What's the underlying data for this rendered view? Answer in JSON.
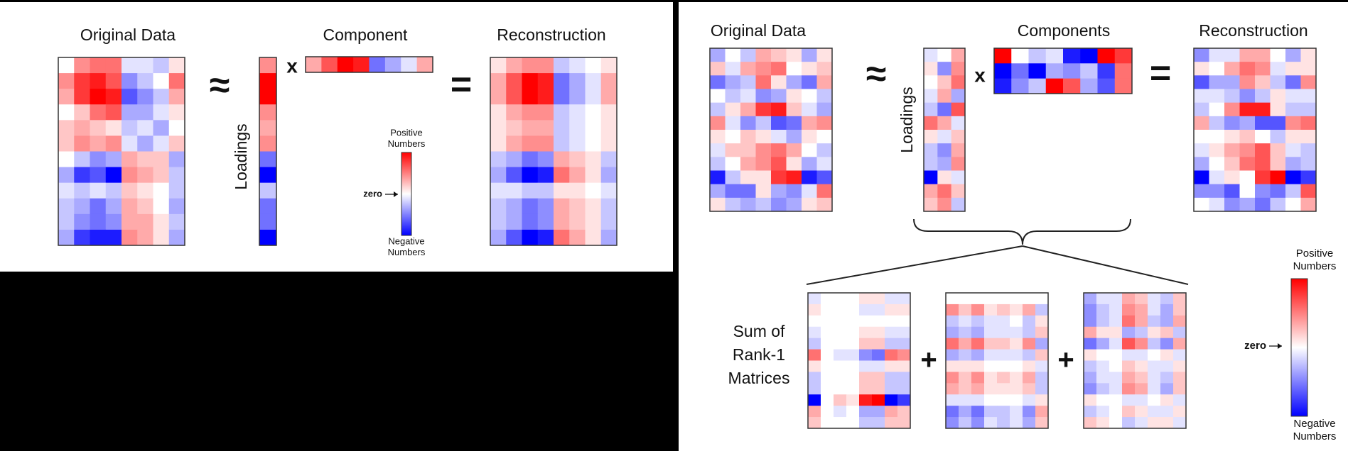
{
  "left": {
    "original": {
      "title": "Original Data",
      "matrix": [
        [
          0,
          4,
          5,
          5,
          -1,
          -1,
          -2,
          1
        ],
        [
          4,
          7,
          8,
          6,
          -4,
          -2,
          0,
          5
        ],
        [
          3,
          7,
          9,
          8,
          -6,
          -4,
          -2,
          3
        ],
        [
          0,
          2,
          5,
          6,
          -3,
          -3,
          -1,
          1
        ],
        [
          2,
          3,
          2,
          1,
          -2,
          -1,
          -3,
          0
        ],
        [
          2,
          4,
          3,
          4,
          -1,
          -3,
          -1,
          2
        ],
        [
          0,
          -2,
          -4,
          -3,
          3,
          2,
          2,
          -3
        ],
        [
          -3,
          -7,
          -6,
          -9,
          4,
          3,
          2,
          -2
        ],
        [
          -1,
          -2,
          -1,
          -2,
          2,
          1,
          0,
          -2
        ],
        [
          -2,
          -3,
          -5,
          -3,
          3,
          2,
          0,
          -3
        ],
        [
          -2,
          -4,
          -5,
          -4,
          3,
          3,
          1,
          -2
        ],
        [
          -3,
          -7,
          -8,
          -8,
          4,
          3,
          1,
          -3
        ]
      ]
    },
    "approx": "≈",
    "loadings": {
      "label": "Loadings",
      "matrix": [
        [
          4
        ],
        [
          9
        ],
        [
          9
        ],
        [
          4
        ],
        [
          3
        ],
        [
          4
        ],
        [
          -5
        ],
        [
          -9
        ],
        [
          -2
        ],
        [
          -5
        ],
        [
          -5
        ],
        [
          -9
        ]
      ]
    },
    "times": "x",
    "component": {
      "title": "Component",
      "matrix": [
        [
          3,
          6,
          9,
          8,
          -5,
          -3,
          -1,
          3
        ]
      ]
    },
    "equals": "=",
    "reconstruction": {
      "title": "Reconstruction",
      "matrix": [
        [
          1,
          3,
          4,
          4,
          -2,
          -1,
          0,
          1
        ],
        [
          3,
          6,
          9,
          8,
          -5,
          -3,
          -1,
          3
        ],
        [
          3,
          6,
          9,
          8,
          -5,
          -3,
          -1,
          3
        ],
        [
          1,
          3,
          4,
          4,
          -2,
          -1,
          0,
          1
        ],
        [
          1,
          2,
          3,
          3,
          -2,
          -1,
          0,
          1
        ],
        [
          1,
          3,
          4,
          4,
          -2,
          -1,
          0,
          1
        ],
        [
          -2,
          -3,
          -5,
          -4,
          3,
          2,
          1,
          -2
        ],
        [
          -3,
          -6,
          -9,
          -8,
          5,
          3,
          1,
          -3
        ],
        [
          -1,
          -1,
          -2,
          -2,
          1,
          1,
          0,
          -1
        ],
        [
          -2,
          -3,
          -5,
          -4,
          3,
          2,
          1,
          -2
        ],
        [
          -2,
          -3,
          -5,
          -4,
          3,
          2,
          1,
          -2
        ],
        [
          -3,
          -6,
          -9,
          -8,
          5,
          3,
          1,
          -3
        ]
      ]
    },
    "colorbar": {
      "positive": [
        "Positive",
        "Numbers"
      ],
      "zero": "zero",
      "negative": [
        "Negative",
        "Numbers"
      ]
    }
  },
  "right": {
    "original": {
      "title": "Original Data",
      "matrix": [
        [
          -3,
          0,
          -2,
          3,
          2,
          1,
          -3,
          1
        ],
        [
          2,
          -1,
          3,
          4,
          5,
          0,
          1,
          2
        ],
        [
          -5,
          -3,
          -2,
          5,
          1,
          -3,
          -5,
          3
        ],
        [
          0,
          -2,
          -1,
          -4,
          -3,
          1,
          0,
          -2
        ],
        [
          -2,
          1,
          3,
          7,
          8,
          2,
          -1,
          -3
        ],
        [
          4,
          -1,
          -4,
          -2,
          -6,
          -5,
          3,
          4
        ],
        [
          1,
          0,
          2,
          1,
          -1,
          -3,
          1,
          0
        ],
        [
          -1,
          2,
          2,
          4,
          5,
          3,
          0,
          -2
        ],
        [
          -2,
          0,
          3,
          4,
          6,
          1,
          -3,
          -1
        ],
        [
          -8,
          -2,
          1,
          1,
          7,
          8,
          -8,
          -6
        ],
        [
          -3,
          -5,
          -5,
          1,
          -3,
          -4,
          -1,
          5
        ],
        [
          1,
          -2,
          -3,
          -2,
          -4,
          -3,
          1,
          2
        ]
      ]
    },
    "approx": "≈",
    "loadings": {
      "label": "Loadings",
      "matrix": [
        [
          -1,
          0,
          3
        ],
        [
          1,
          -4,
          4
        ],
        [
          0,
          2,
          5
        ],
        [
          -1,
          3,
          -3
        ],
        [
          -2,
          -5,
          6
        ],
        [
          5,
          3,
          -1
        ],
        [
          1,
          -1,
          2
        ],
        [
          -2,
          -4,
          3
        ],
        [
          -2,
          -3,
          4
        ],
        [
          -9,
          1,
          -1
        ],
        [
          3,
          5,
          2
        ],
        [
          2,
          4,
          -2
        ]
      ]
    },
    "times": "x",
    "components": {
      "title": "Components",
      "matrix": [
        [
          9,
          0,
          -2,
          -1,
          -8,
          -9,
          9,
          7
        ],
        [
          -9,
          -5,
          -9,
          -3,
          -4,
          -2,
          -7,
          5
        ],
        [
          -8,
          -4,
          -2,
          9,
          6,
          -3,
          -6,
          5
        ]
      ]
    },
    "equals": "=",
    "reconstruction": {
      "title": "Reconstruction",
      "matrix": [
        [
          -4,
          -1,
          -1,
          3,
          3,
          0,
          -3,
          1
        ],
        [
          1,
          0,
          3,
          5,
          4,
          -1,
          1,
          1
        ],
        [
          -6,
          -3,
          -3,
          4,
          2,
          -2,
          -5,
          4
        ],
        [
          -1,
          -1,
          -2,
          -4,
          -2,
          1,
          -1,
          -1
        ],
        [
          -2,
          0,
          4,
          8,
          8,
          1,
          -2,
          -2
        ],
        [
          3,
          -2,
          -4,
          -3,
          -6,
          -6,
          4,
          5
        ],
        [
          0,
          0,
          1,
          2,
          0,
          -2,
          1,
          1
        ],
        [
          -1,
          1,
          3,
          4,
          6,
          2,
          -1,
          -2
        ],
        [
          -3,
          0,
          2,
          5,
          6,
          2,
          -3,
          -2
        ],
        [
          -9,
          -1,
          1,
          0,
          7,
          9,
          -9,
          -7
        ],
        [
          -4,
          -4,
          -6,
          0,
          -4,
          -5,
          -2,
          6
        ],
        [
          0,
          -1,
          -4,
          -3,
          -5,
          -2,
          0,
          3
        ]
      ]
    },
    "rank1": {
      "label": [
        "Sum of",
        "Rank-1",
        "Matrices"
      ],
      "plus": "+",
      "matrices": [
        [
          [
            -1,
            0,
            0,
            0,
            1,
            1,
            -1,
            -1
          ],
          [
            1,
            0,
            0,
            0,
            -1,
            -1,
            1,
            1
          ],
          [
            0,
            0,
            0,
            0,
            0,
            0,
            0,
            0
          ],
          [
            -1,
            0,
            0,
            0,
            1,
            1,
            -1,
            -1
          ],
          [
            -2,
            0,
            0,
            0,
            2,
            2,
            -2,
            -2
          ],
          [
            5,
            0,
            -1,
            -1,
            -4,
            -5,
            5,
            4
          ],
          [
            1,
            0,
            0,
            0,
            -1,
            -1,
            1,
            1
          ],
          [
            -2,
            0,
            0,
            0,
            2,
            2,
            -2,
            -2
          ],
          [
            -2,
            0,
            0,
            0,
            2,
            2,
            -2,
            -2
          ],
          [
            -9,
            0,
            2,
            1,
            8,
            9,
            -9,
            -7
          ],
          [
            3,
            0,
            -1,
            0,
            -3,
            -3,
            3,
            2
          ],
          [
            2,
            0,
            0,
            0,
            -2,
            -2,
            2,
            2
          ]
        ],
        [
          [
            0,
            0,
            0,
            0,
            0,
            0,
            0,
            0
          ],
          [
            4,
            2,
            4,
            1,
            2,
            1,
            3,
            -2
          ],
          [
            -2,
            -1,
            -2,
            -1,
            -1,
            0,
            -2,
            1
          ],
          [
            -3,
            -2,
            -3,
            -1,
            -1,
            -1,
            -2,
            2
          ],
          [
            5,
            3,
            5,
            2,
            2,
            1,
            4,
            -3
          ],
          [
            -3,
            -2,
            -3,
            -1,
            -1,
            -1,
            -2,
            2
          ],
          [
            1,
            1,
            1,
            0,
            0,
            0,
            1,
            -1
          ],
          [
            4,
            2,
            4,
            1,
            2,
            1,
            3,
            -2
          ],
          [
            3,
            2,
            3,
            1,
            1,
            1,
            2,
            -2
          ],
          [
            -1,
            -1,
            -1,
            0,
            0,
            0,
            -1,
            1
          ],
          [
            -5,
            -3,
            -5,
            -2,
            -2,
            -1,
            -4,
            3
          ],
          [
            -4,
            -2,
            -4,
            -1,
            -2,
            -1,
            -3,
            2
          ]
        ],
        [
          [
            -3,
            -1,
            -1,
            3,
            2,
            -1,
            -2,
            2
          ],
          [
            -4,
            -2,
            -1,
            4,
            3,
            -1,
            -3,
            2
          ],
          [
            -4,
            -2,
            -1,
            5,
            3,
            -2,
            -3,
            3
          ],
          [
            3,
            1,
            1,
            -3,
            -2,
            1,
            2,
            -2
          ],
          [
            -5,
            -3,
            -1,
            6,
            4,
            -2,
            -4,
            3
          ],
          [
            1,
            0,
            0,
            -1,
            -1,
            0,
            1,
            -1
          ],
          [
            -2,
            -1,
            0,
            2,
            1,
            -1,
            -1,
            1
          ],
          [
            -3,
            -1,
            -1,
            3,
            2,
            -1,
            -2,
            2
          ],
          [
            -4,
            -2,
            -1,
            4,
            3,
            -1,
            -3,
            2
          ],
          [
            1,
            0,
            0,
            -1,
            -1,
            0,
            1,
            -1
          ],
          [
            -2,
            -1,
            0,
            2,
            1,
            -1,
            -1,
            1
          ],
          [
            2,
            1,
            0,
            -2,
            -1,
            1,
            1,
            -1
          ]
        ]
      ]
    },
    "colorbar": {
      "positive": [
        "Positive",
        "Numbers"
      ],
      "zero": "zero",
      "negative": [
        "Negative",
        "Numbers"
      ]
    }
  }
}
